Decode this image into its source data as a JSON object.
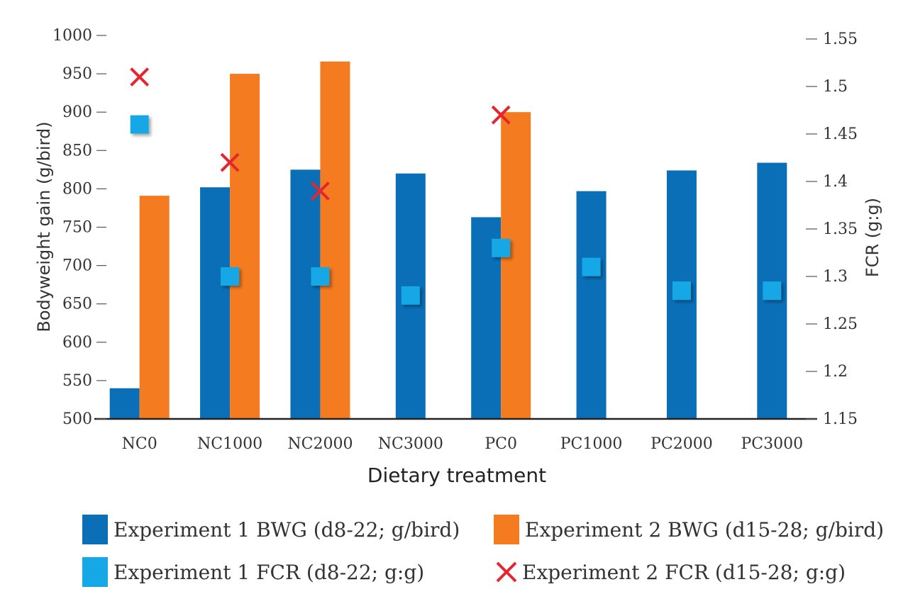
{
  "chart_data": {
    "type": "bar",
    "categories": [
      "NC0",
      "NC1000",
      "NC2000",
      "NC3000",
      "PC0",
      "PC1000",
      "PC2000",
      "PC3000"
    ],
    "xlabel": "Dietary treatment",
    "ylabel": "Bodyweight gain (g/bird)",
    "y2label": "FCR (g:g)",
    "ylim": [
      500,
      1000
    ],
    "y2lim": [
      1.15,
      1.55
    ],
    "yticks": [
      "500",
      "550",
      "600",
      "650",
      "700",
      "750",
      "800",
      "850",
      "900",
      "950",
      "1000"
    ],
    "y2ticks": [
      "1.15",
      "1.2",
      "1.25",
      "1.3",
      "1.35",
      "1.4",
      "1.45",
      "1.5",
      "1.55"
    ],
    "grid": false,
    "legend_position": "bottom",
    "series": [
      {
        "name": "Experiment 1 BWG (d8-22; g/bird)",
        "kind": "bar",
        "axis": "left",
        "color": "#0a6fb7",
        "values": [
          540,
          802,
          825,
          820,
          763,
          797,
          824,
          834
        ]
      },
      {
        "name": "Experiment 2 BWG (d15-28; g/bird)",
        "kind": "bar",
        "axis": "left",
        "color": "#f47b20",
        "values": [
          791,
          950,
          966,
          null,
          900,
          null,
          null,
          null
        ]
      },
      {
        "name": "Experiment 1 FCR (d8-22; g:g)",
        "kind": "marker-square",
        "axis": "right",
        "color": "#16a8e6",
        "values": [
          1.46,
          1.3,
          1.3,
          1.28,
          1.33,
          1.31,
          1.285,
          1.285
        ]
      },
      {
        "name": "Experiment 2 FCR (d15-28; g:g)",
        "kind": "marker-x",
        "axis": "right",
        "color": "#e3262f",
        "values": [
          1.51,
          1.42,
          1.39,
          null,
          1.47,
          null,
          null,
          null
        ]
      }
    ]
  }
}
